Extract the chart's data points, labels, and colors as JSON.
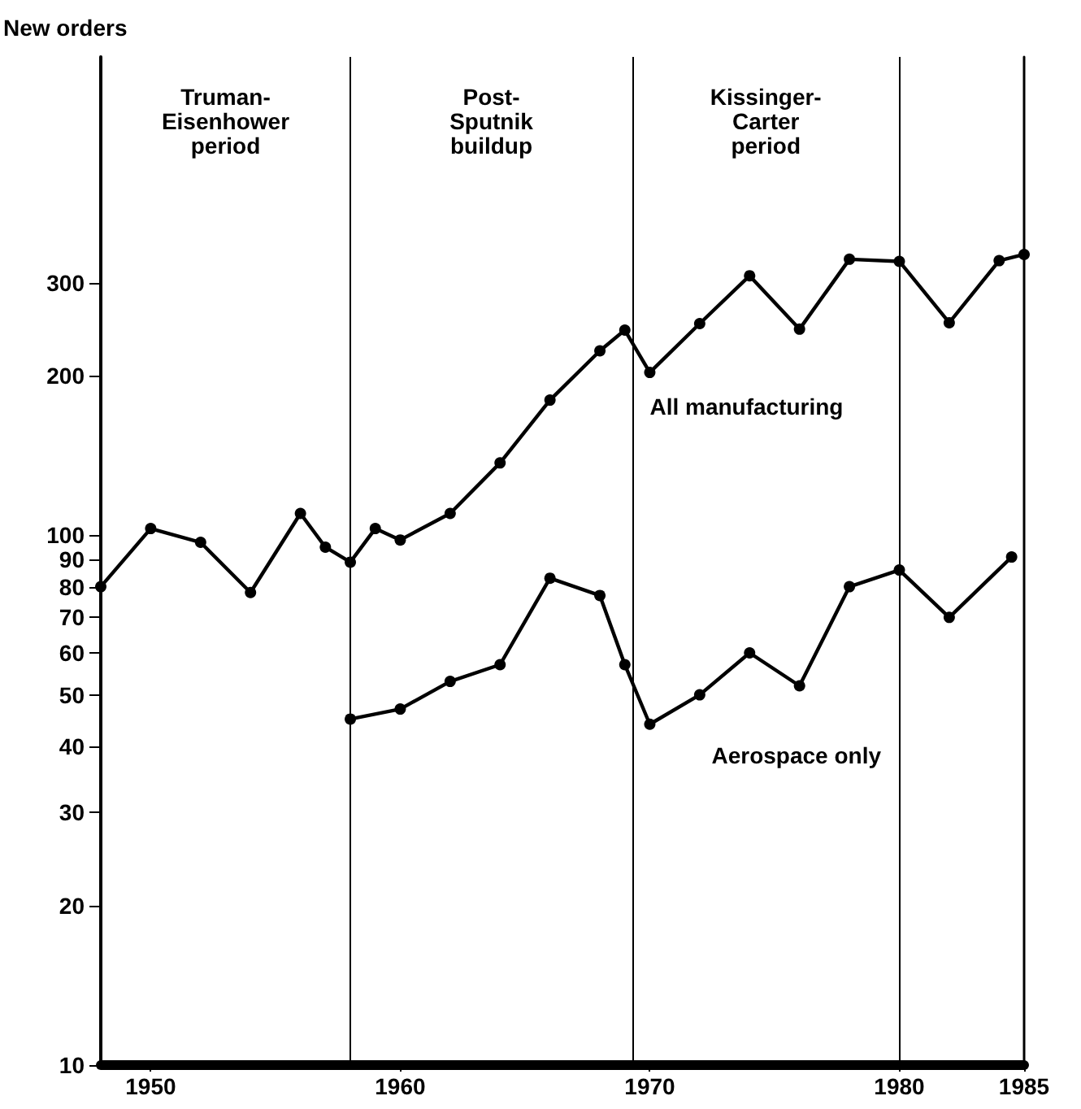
{
  "chart_data": {
    "type": "line",
    "ylabel": "New orders",
    "xlim": [
      1948,
      1985
    ],
    "xticks": [
      1950,
      1960,
      1970,
      1980,
      1985
    ],
    "ylim": [
      10,
      800
    ],
    "yticks": [
      10,
      20,
      30,
      40,
      50,
      60,
      70,
      80,
      90,
      100,
      200,
      300
    ],
    "log": "y",
    "grid": false,
    "legend": false,
    "marker": "circle",
    "line_style": "solid",
    "series": [
      {
        "name": "All manufacturing",
        "color": "#000000",
        "x": [
          1948,
          1950,
          1952,
          1954,
          1956,
          1957,
          1958,
          1959,
          1960,
          1962,
          1964,
          1966,
          1968,
          1969,
          1970,
          1972,
          1974,
          1976,
          1978,
          1980,
          1982,
          1984,
          1985
        ],
        "values": [
          80,
          103,
          97,
          78,
          110,
          95,
          89,
          103,
          98,
          110,
          137,
          180,
          223,
          244,
          203,
          251,
          309,
          245,
          332,
          329,
          252,
          330,
          339
        ]
      },
      {
        "name": "Aerospace only",
        "color": "#000000",
        "x": [
          1958,
          1960,
          1962,
          1964,
          1966,
          1968,
          1969,
          1970,
          1972,
          1974,
          1976,
          1978,
          1980,
          1982,
          1984.5
        ],
        "values": [
          45,
          47,
          53,
          57,
          83,
          77,
          57,
          44,
          50,
          60,
          52,
          80,
          86,
          70,
          91
        ]
      }
    ],
    "ref_lines": [
      {
        "axis": "x",
        "value": 1958
      },
      {
        "axis": "x",
        "value": 1969.3
      },
      {
        "axis": "x",
        "value": 1980
      }
    ],
    "annotations": [
      "Truman-\nEisenhower\nperiod",
      "Post-\nSputnik\nbuildup",
      "Kissinger-\nCarter\nperiod"
    ]
  }
}
